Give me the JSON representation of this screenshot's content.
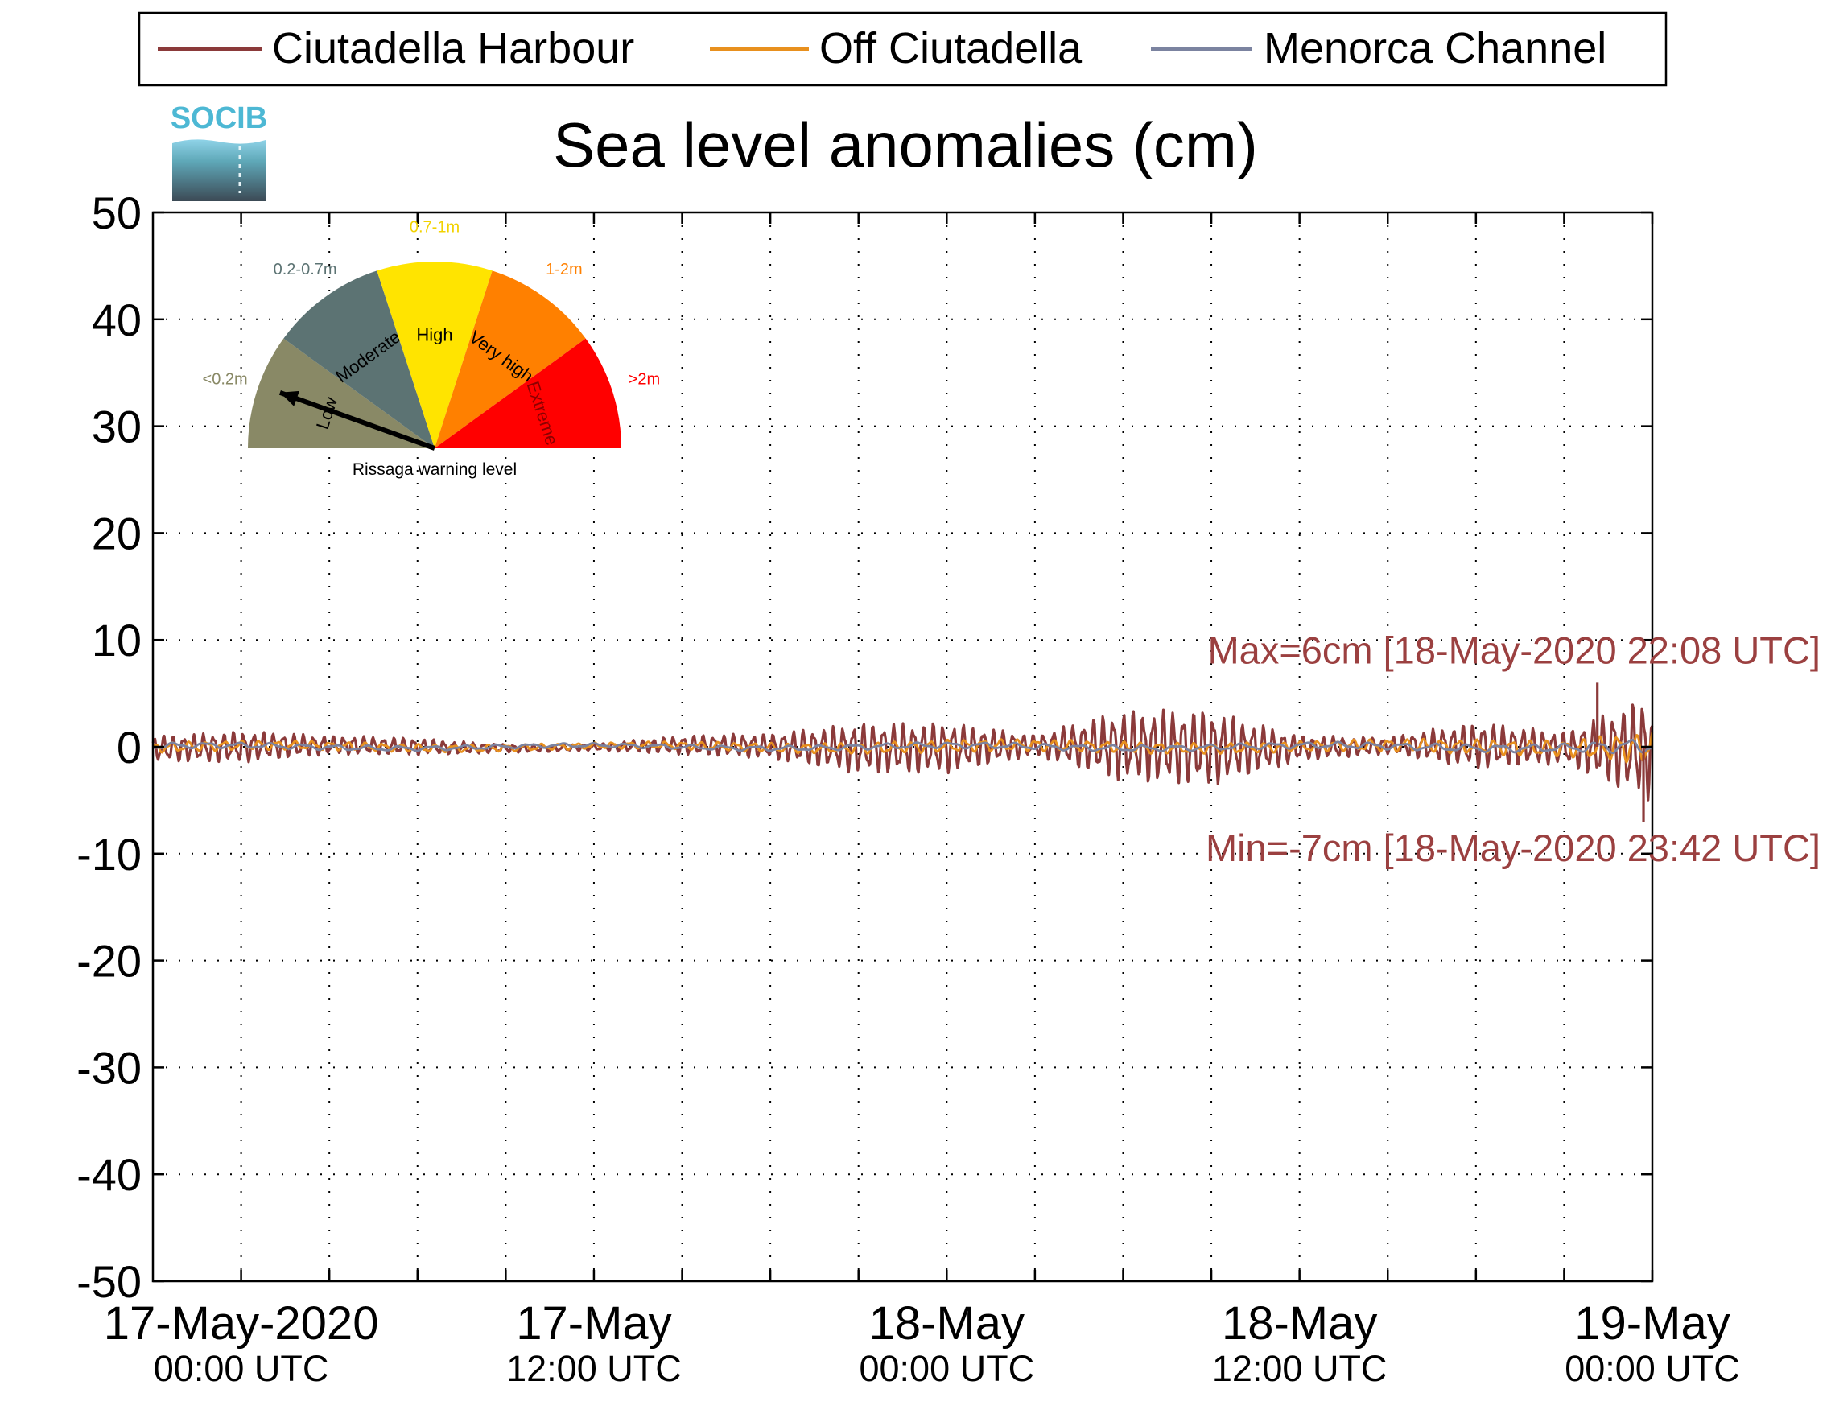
{
  "chart_data": {
    "type": "line",
    "title": "Sea level anomalies (cm)",
    "xlabel": "",
    "ylabel": "",
    "ylim": [
      -50,
      50
    ],
    "yticks": [
      50,
      40,
      30,
      20,
      10,
      0,
      -10,
      -20,
      -30,
      -40,
      -50
    ],
    "y_tick_labels": [
      "50",
      "40",
      "30",
      "20",
      "10",
      "0",
      "-10",
      "-20",
      "-30",
      "-40",
      "-50"
    ],
    "x_unit": "hours since 17-May-2020 00:00 UTC",
    "xlim": [
      -3,
      48
    ],
    "x_major_ticks": [
      {
        "x": 0,
        "line1": "17-May-2020",
        "line2": "00:00 UTC"
      },
      {
        "x": 12,
        "line1": "17-May",
        "line2": "12:00 UTC"
      },
      {
        "x": 24,
        "line1": "18-May",
        "line2": "00:00 UTC"
      },
      {
        "x": 36,
        "line1": "18-May",
        "line2": "12:00 UTC"
      },
      {
        "x": 48,
        "line1": "19-May",
        "line2": "00:00 UTC"
      }
    ],
    "x_minor_ticks": [
      3,
      6,
      9,
      15,
      18,
      21,
      27,
      30,
      33,
      39,
      42,
      45
    ],
    "grid": true,
    "legend_position": "top",
    "series": [
      {
        "name": "Ciutadella Harbour",
        "color": "#8b3a3a",
        "envelope_x": [
          -3,
          0,
          3,
          6,
          9,
          12,
          15,
          18,
          21,
          24,
          27,
          30,
          33,
          36,
          39,
          42,
          45,
          47,
          48
        ],
        "envelope_amplitude": [
          1.2,
          1.5,
          0.9,
          0.8,
          0.4,
          0.3,
          0.9,
          1.2,
          2.4,
          2.4,
          1.0,
          3.4,
          3.6,
          1.2,
          0.8,
          2.2,
          1.5,
          4.0,
          5.0
        ]
      },
      {
        "name": "Off Ciutadella",
        "color": "#e8901e",
        "envelope_x": [
          -3,
          12,
          24,
          36,
          45,
          48
        ],
        "envelope_amplitude": [
          0.5,
          0.3,
          0.6,
          0.5,
          0.8,
          1.6
        ]
      },
      {
        "name": "Menorca Channel",
        "color": "#7b83a0",
        "envelope_x": [
          -3,
          12,
          24,
          36,
          45,
          48
        ],
        "envelope_amplitude": [
          0.3,
          0.2,
          0.3,
          0.3,
          0.4,
          0.8
        ]
      }
    ],
    "annotations": [
      {
        "text": "Max=6cm [18-May-2020 22:08 UTC]",
        "y": 9
      },
      {
        "text": "Min=-7cm [18-May-2020 23:42 UTC]",
        "y": -9.5
      }
    ],
    "extremes": [
      {
        "label": "Max",
        "value_cm": 6,
        "x": 46.13
      },
      {
        "label": "Min",
        "value_cm": -7,
        "x": 47.7
      }
    ]
  },
  "logo": {
    "text": "SOCIB"
  },
  "gauge": {
    "caption": "Rissaga warning level",
    "needle": "Low",
    "segments": [
      {
        "label": "Low",
        "range": "<0.2m",
        "color": "#898966",
        "range_color": "#898966",
        "label_color": "#000000"
      },
      {
        "label": "Moderate",
        "range": "0.2-0.7m",
        "color": "#5c7373",
        "range_color": "#5c7373",
        "label_color": "#000000"
      },
      {
        "label": "High",
        "range": "0.7-1m",
        "color": "#ffe400",
        "range_color": "#f2d200",
        "label_color": "#000000"
      },
      {
        "label": "Very high",
        "range": "1-2m",
        "color": "#ff8000",
        "range_color": "#ff8000",
        "label_color": "#000000"
      },
      {
        "label": "Extreme",
        "range": ">2m",
        "color": "#ff0000",
        "range_color": "#ff0000",
        "label_color": "#8b0000"
      }
    ]
  }
}
